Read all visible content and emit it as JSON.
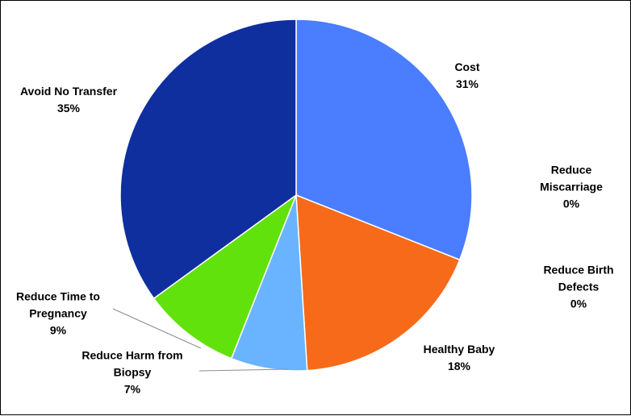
{
  "chart_data": {
    "type": "pie",
    "title": "",
    "slices": [
      {
        "category_lines": [
          "Cost"
        ],
        "pct_label": "31%",
        "value": 31,
        "color": "#4A7DFF"
      },
      {
        "category_lines": [
          "Reduce",
          "Miscarriage"
        ],
        "pct_label": "0%",
        "value": 0,
        "color": "#4A7DFF"
      },
      {
        "category_lines": [
          "Reduce Birth",
          "Defects"
        ],
        "pct_label": "0%",
        "value": 0,
        "color": "#4A7DFF"
      },
      {
        "category_lines": [
          "Healthy Baby"
        ],
        "pct_label": "18%",
        "value": 18,
        "color": "#F66A1A"
      },
      {
        "category_lines": [
          "Reduce Harm from",
          "Biopsy"
        ],
        "pct_label": "7%",
        "value": 7,
        "color": "#6AB4FF"
      },
      {
        "category_lines": [
          "Reduce Time to",
          "Pregnancy"
        ],
        "pct_label": "9%",
        "value": 9,
        "color": "#62E20C"
      },
      {
        "category_lines": [
          "Avoid No Transfer"
        ],
        "pct_label": "35%",
        "value": 35,
        "color": "#0F2F9F"
      }
    ],
    "legend": "none",
    "labels": "outside, category and percent"
  }
}
